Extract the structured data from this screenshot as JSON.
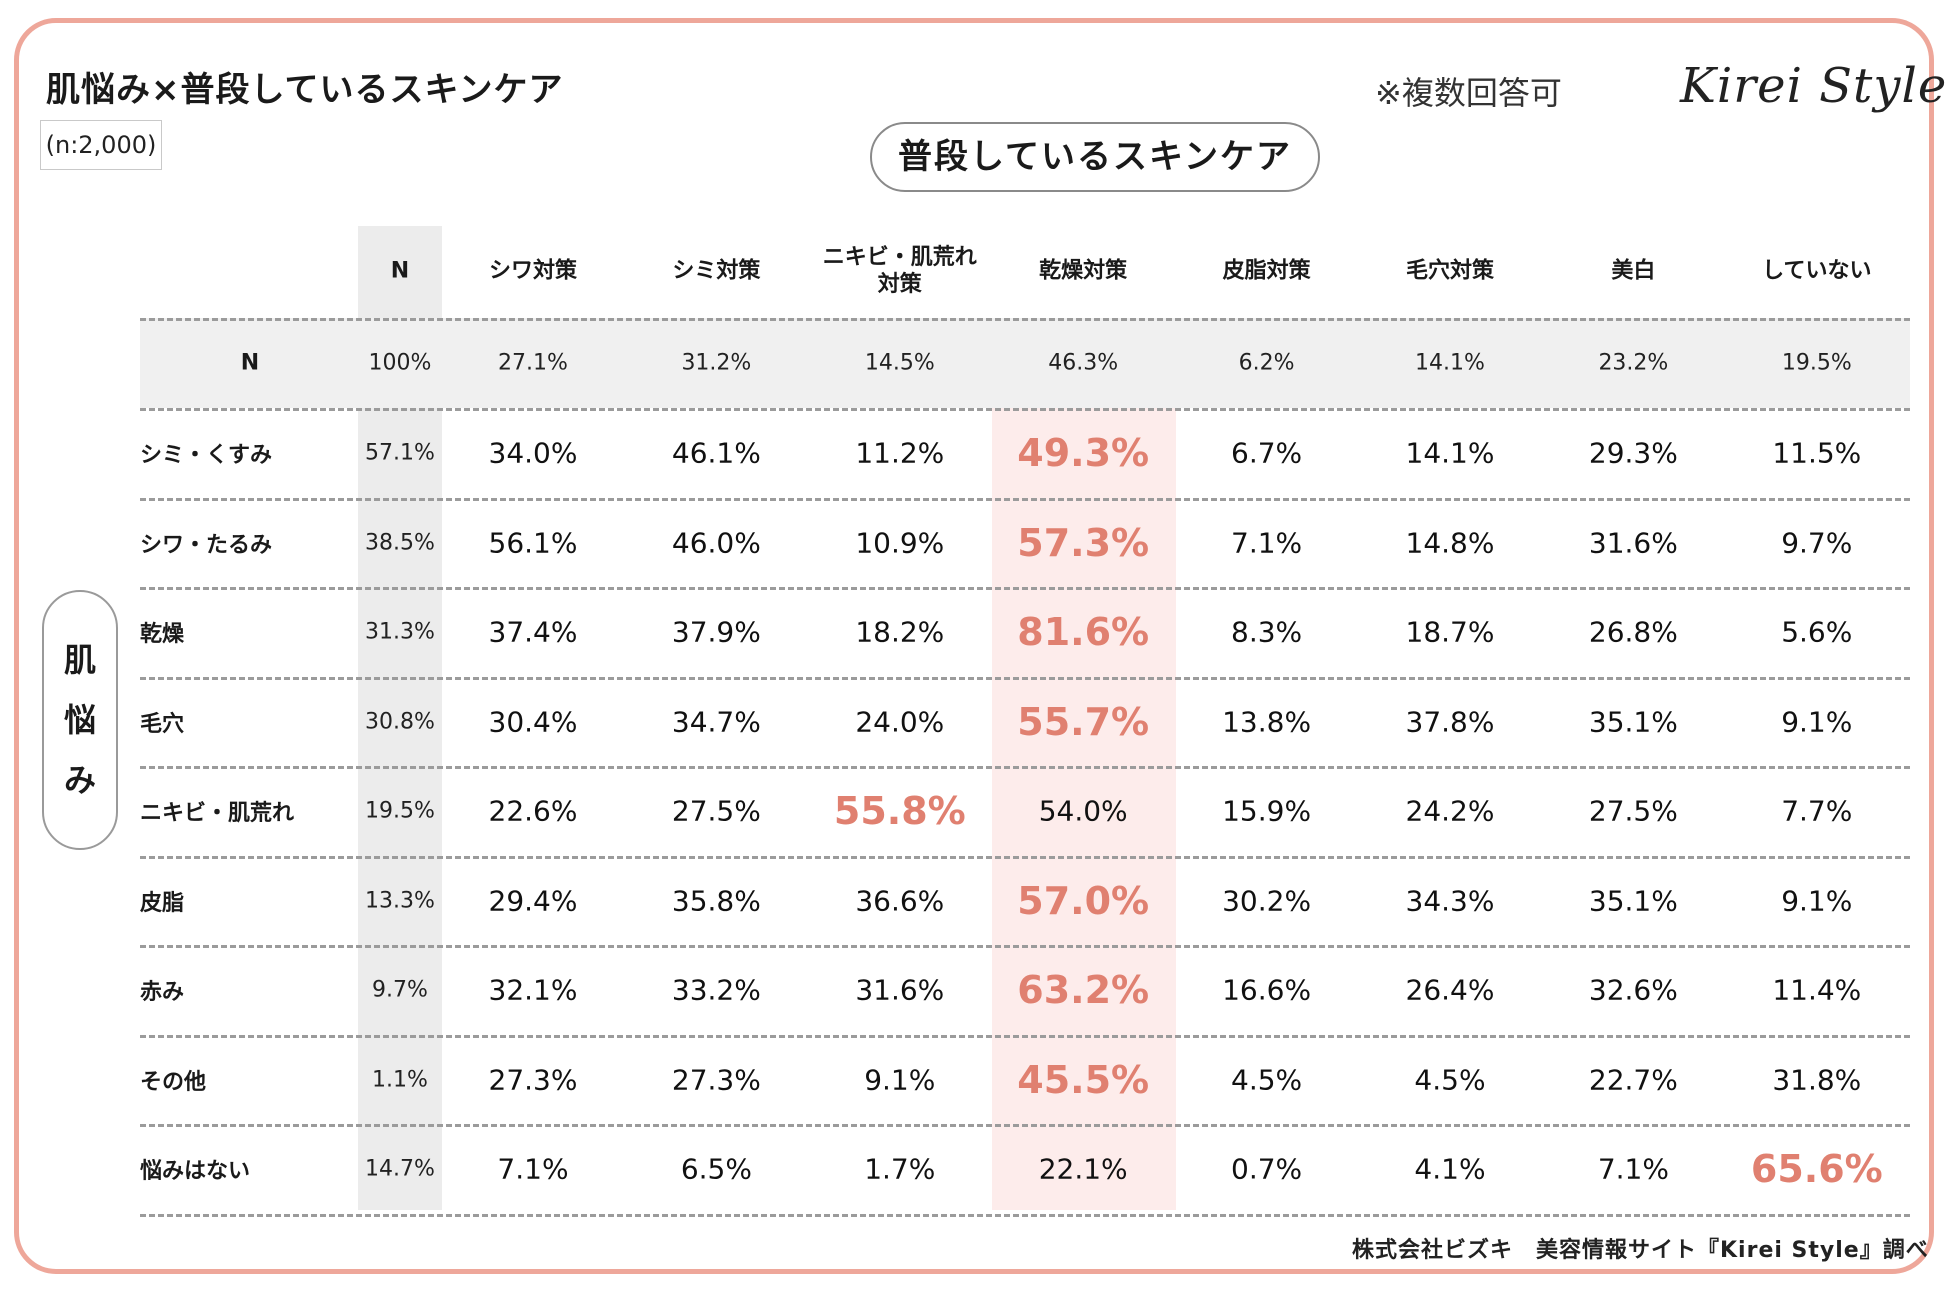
{
  "title": "肌悩み×普段しているスキンケア",
  "sample_size": "(n:2,000)",
  "multi_answer_note": "※複数回答可",
  "brand_logo": "Kirei Style",
  "header_pill": "普段しているスキンケア",
  "side_label": [
    "肌",
    "悩",
    "み"
  ],
  "footer": "株式会社ビズキ　美容情報サイト『Kirei Style』調べ",
  "colors": {
    "frame": "#eea79a",
    "highlight_text": "#e08070",
    "highlight_bg": "#fdeceb",
    "n_column_bg": "#ececec"
  },
  "chart_data": {
    "type": "table",
    "n_column_header": "N",
    "columns": [
      "シワ対策",
      "シミ対策",
      "ニキビ・肌荒れ対策",
      "乾燥対策",
      "皮脂対策",
      "毛穴対策",
      "美白",
      "していない"
    ],
    "column_header_lines": [
      [
        "シワ対策"
      ],
      [
        "シミ対策"
      ],
      [
        "ニキビ・肌荒れ",
        "対策"
      ],
      [
        "乾燥対策"
      ],
      [
        "皮脂対策"
      ],
      [
        "毛穴対策"
      ],
      [
        "美白"
      ],
      [
        "していない"
      ]
    ],
    "total_row": {
      "label": "N",
      "n": "100%",
      "values": [
        "27.1%",
        "31.2%",
        "14.5%",
        "46.3%",
        "6.2%",
        "14.1%",
        "23.2%",
        "19.5%"
      ]
    },
    "rows": [
      {
        "label": "シミ・くすみ",
        "n": "57.1%",
        "values": [
          "34.0%",
          "46.1%",
          "11.2%",
          "49.3%",
          "6.7%",
          "14.1%",
          "29.3%",
          "11.5%"
        ],
        "highlight": 3
      },
      {
        "label": "シワ・たるみ",
        "n": "38.5%",
        "values": [
          "56.1%",
          "46.0%",
          "10.9%",
          "57.3%",
          "7.1%",
          "14.8%",
          "31.6%",
          "9.7%"
        ],
        "highlight": 3
      },
      {
        "label": "乾燥",
        "n": "31.3%",
        "values": [
          "37.4%",
          "37.9%",
          "18.2%",
          "81.6%",
          "8.3%",
          "18.7%",
          "26.8%",
          "5.6%"
        ],
        "highlight": 3
      },
      {
        "label": "毛穴",
        "n": "30.8%",
        "values": [
          "30.4%",
          "34.7%",
          "24.0%",
          "55.7%",
          "13.8%",
          "37.8%",
          "35.1%",
          "9.1%"
        ],
        "highlight": 3
      },
      {
        "label": "ニキビ・肌荒れ",
        "n": "19.5%",
        "values": [
          "22.6%",
          "27.5%",
          "55.8%",
          "54.0%",
          "15.9%",
          "24.2%",
          "27.5%",
          "7.7%"
        ],
        "highlight": 2
      },
      {
        "label": "皮脂",
        "n": "13.3%",
        "values": [
          "29.4%",
          "35.8%",
          "36.6%",
          "57.0%",
          "30.2%",
          "34.3%",
          "35.1%",
          "9.1%"
        ],
        "highlight": 3
      },
      {
        "label": "赤み",
        "n": "9.7%",
        "values": [
          "32.1%",
          "33.2%",
          "31.6%",
          "63.2%",
          "16.6%",
          "26.4%",
          "32.6%",
          "11.4%"
        ],
        "highlight": 3
      },
      {
        "label": "その他",
        "n": "1.1%",
        "values": [
          "27.3%",
          "27.3%",
          "9.1%",
          "45.5%",
          "4.5%",
          "4.5%",
          "22.7%",
          "31.8%"
        ],
        "highlight": 3
      },
      {
        "label": "悩みはない",
        "n": "14.7%",
        "values": [
          "7.1%",
          "6.5%",
          "1.7%",
          "22.1%",
          "0.7%",
          "4.1%",
          "7.1%",
          "65.6%"
        ],
        "highlight": 7
      }
    ]
  }
}
